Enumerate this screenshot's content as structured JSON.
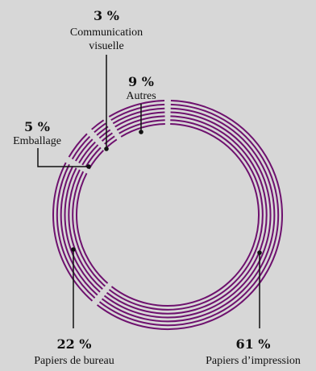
{
  "chart_data": {
    "type": "pie",
    "style": "donut",
    "series": [
      {
        "percent_label": "61 %",
        "label": "Papiers d’impression",
        "value": 61
      },
      {
        "percent_label": "22 %",
        "label": "Papiers de bureau",
        "value": 22
      },
      {
        "percent_label": "5 %",
        "label": "Emballage",
        "value": 5
      },
      {
        "percent_label": "3 %",
        "label_lines": [
          "Communication",
          "visuelle"
        ],
        "value": 3
      },
      {
        "percent_label": "9 %",
        "label": "Autres",
        "value": 9
      }
    ],
    "colors": {
      "ring": "#6e116e",
      "background": "#d7d7d7"
    }
  }
}
